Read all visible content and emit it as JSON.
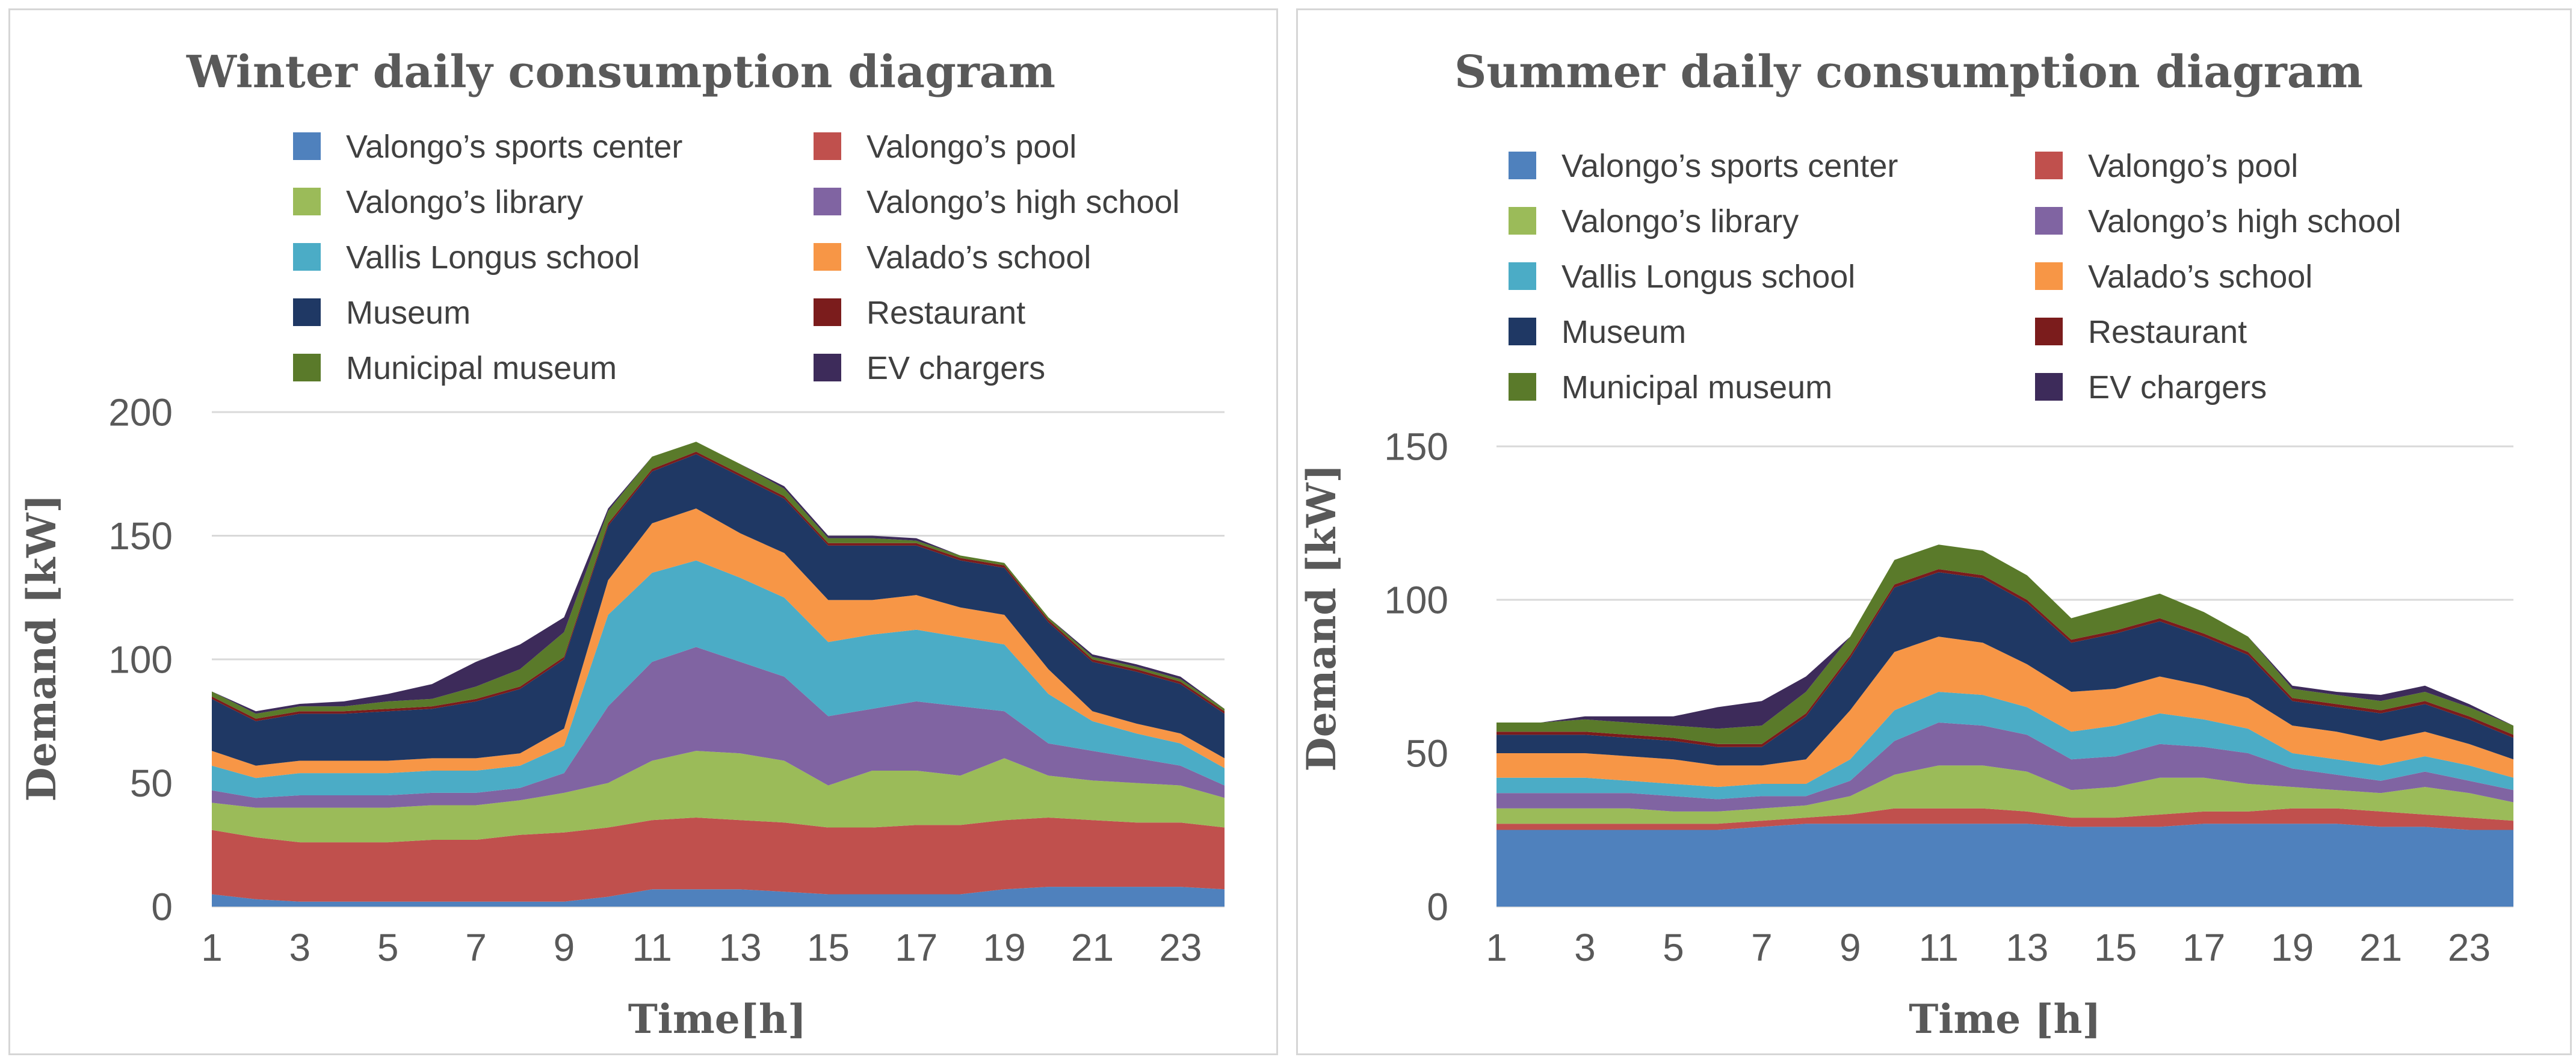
{
  "chart_data": [
    {
      "id": "winter",
      "type": "area",
      "stacked": true,
      "title": "Winter daily consumption diagram",
      "xlabel": "Time[h]",
      "ylabel": "Demand [kW]",
      "x": [
        1,
        2,
        3,
        4,
        5,
        6,
        7,
        8,
        9,
        10,
        11,
        12,
        13,
        14,
        15,
        16,
        17,
        18,
        19,
        20,
        21,
        22,
        23,
        24
      ],
      "x_ticks": [
        1,
        3,
        5,
        7,
        9,
        11,
        13,
        15,
        17,
        19,
        21,
        23
      ],
      "y_ticks": [
        0,
        50,
        100,
        150,
        200
      ],
      "ylim": [
        0,
        200
      ],
      "grid": true,
      "legend_position": "top",
      "series": [
        {
          "name": "Valongo’s sports center",
          "color": "#4f81bd",
          "values": [
            5,
            3,
            2,
            2,
            2,
            2,
            2,
            2,
            2,
            4,
            7,
            7,
            7,
            6,
            5,
            5,
            5,
            5,
            7,
            8,
            8,
            8,
            8,
            7
          ]
        },
        {
          "name": "Valongo’s pool",
          "color": "#c0504d",
          "values": [
            26,
            25,
            24,
            24,
            24,
            25,
            25,
            27,
            28,
            28,
            28,
            29,
            28,
            28,
            27,
            27,
            28,
            28,
            28,
            28,
            27,
            26,
            26,
            25
          ]
        },
        {
          "name": "Valongo’s library",
          "color": "#9bbb59",
          "values": [
            11,
            12,
            14,
            14,
            14,
            14,
            14,
            14,
            16,
            18,
            24,
            27,
            27,
            25,
            17,
            23,
            22,
            20,
            25,
            17,
            16,
            16,
            15,
            12
          ]
        },
        {
          "name": "Valongo’s high school",
          "color": "#8064a2",
          "values": [
            5,
            4,
            5,
            5,
            5,
            5,
            5,
            5,
            8,
            31,
            40,
            42,
            37,
            34,
            28,
            25,
            28,
            28,
            19,
            13,
            12,
            10,
            8,
            5
          ]
        },
        {
          "name": "Vallis Longus school",
          "color": "#4bacc6",
          "values": [
            10,
            8,
            9,
            9,
            9,
            9,
            9,
            9,
            11,
            37,
            36,
            35,
            34,
            32,
            30,
            30,
            29,
            28,
            27,
            20,
            12,
            10,
            9,
            7
          ]
        },
        {
          "name": "Valado’s school",
          "color": "#f79646",
          "values": [
            6,
            5,
            5,
            5,
            5,
            5,
            5,
            5,
            7,
            14,
            20,
            21,
            18,
            18,
            17,
            14,
            14,
            12,
            12,
            10,
            4,
            4,
            4,
            4
          ]
        },
        {
          "name": "Museum",
          "color": "#1f3864",
          "values": [
            21,
            18,
            19,
            19,
            20,
            20,
            23,
            26,
            28,
            22,
            21,
            22,
            23,
            22,
            22,
            22,
            20,
            19,
            19,
            19,
            20,
            21,
            20,
            18
          ]
        },
        {
          "name": "Restaurant",
          "color": "#7b1c1c",
          "values": [
            1,
            1,
            1,
            1,
            1,
            1,
            1,
            1,
            1,
            1,
            1,
            1,
            1,
            1,
            1,
            1,
            1,
            1,
            1,
            1,
            1,
            1,
            1,
            1
          ]
        },
        {
          "name": "Municipal museum",
          "color": "#5a7a2a",
          "values": [
            2,
            2,
            2,
            2,
            3,
            3,
            5,
            7,
            10,
            5,
            5,
            4,
            4,
            3,
            2,
            2,
            1,
            1,
            1,
            1,
            1,
            1,
            1,
            1
          ]
        },
        {
          "name": "EV chargers",
          "color": "#3d2b5a",
          "values": [
            0,
            1,
            1,
            2,
            3,
            6,
            10,
            10,
            6,
            1,
            0,
            0,
            0,
            1,
            1,
            1,
            1,
            0,
            0,
            0,
            1,
            1,
            1,
            0
          ]
        }
      ]
    },
    {
      "id": "summer",
      "type": "area",
      "stacked": true,
      "title": "Summer daily consumption diagram",
      "xlabel": "Time [h]",
      "ylabel": "Demand [kW]",
      "x": [
        1,
        2,
        3,
        4,
        5,
        6,
        7,
        8,
        9,
        10,
        11,
        12,
        13,
        14,
        15,
        16,
        17,
        18,
        19,
        20,
        21,
        22,
        23,
        24
      ],
      "x_ticks": [
        1,
        3,
        5,
        7,
        9,
        11,
        13,
        15,
        17,
        19,
        21,
        23
      ],
      "y_ticks": [
        0,
        50,
        100,
        150
      ],
      "ylim": [
        0,
        150
      ],
      "grid": true,
      "legend_position": "top",
      "series": [
        {
          "name": "Valongo’s sports center",
          "color": "#4f81bd",
          "values": [
            25,
            25,
            25,
            25,
            25,
            25,
            26,
            27,
            27,
            27,
            27,
            27,
            27,
            26,
            26,
            26,
            27,
            27,
            27,
            27,
            26,
            26,
            25,
            25
          ]
        },
        {
          "name": "Valongo’s pool",
          "color": "#c0504d",
          "values": [
            2,
            2,
            2,
            2,
            2,
            2,
            2,
            2,
            3,
            5,
            5,
            5,
            4,
            3,
            3,
            4,
            4,
            4,
            5,
            5,
            5,
            4,
            4,
            3
          ]
        },
        {
          "name": "Valongo’s library",
          "color": "#9bbb59",
          "values": [
            5,
            5,
            5,
            5,
            4,
            4,
            4,
            4,
            6,
            11,
            14,
            14,
            13,
            9,
            10,
            12,
            11,
            9,
            7,
            6,
            6,
            9,
            8,
            6
          ]
        },
        {
          "name": "Valongo’s high school",
          "color": "#8064a2",
          "values": [
            5,
            5,
            5,
            5,
            5,
            4,
            4,
            3,
            5,
            11,
            14,
            13,
            12,
            10,
            10,
            11,
            10,
            10,
            6,
            5,
            4,
            5,
            4,
            4
          ]
        },
        {
          "name": "Vallis Longus school",
          "color": "#4bacc6",
          "values": [
            5,
            5,
            5,
            4,
            4,
            4,
            4,
            4,
            7,
            10,
            10,
            10,
            9,
            9,
            10,
            10,
            9,
            8,
            5,
            5,
            5,
            5,
            5,
            4
          ]
        },
        {
          "name": "Valado’s school",
          "color": "#f79646",
          "values": [
            8,
            8,
            8,
            8,
            8,
            7,
            6,
            8,
            16,
            19,
            18,
            17,
            14,
            13,
            12,
            12,
            11,
            10,
            9,
            9,
            8,
            8,
            7,
            6
          ]
        },
        {
          "name": "Museum",
          "color": "#1f3864",
          "values": [
            6,
            6,
            6,
            6,
            6,
            6,
            6,
            14,
            17,
            21,
            21,
            21,
            20,
            16,
            18,
            18,
            16,
            14,
            8,
            8,
            9,
            9,
            8,
            7
          ]
        },
        {
          "name": "Restaurant",
          "color": "#7b1c1c",
          "values": [
            1,
            1,
            1,
            1,
            1,
            1,
            1,
            1,
            1,
            1,
            1,
            1,
            1,
            1,
            1,
            1,
            1,
            1,
            1,
            1,
            1,
            1,
            1,
            1
          ]
        },
        {
          "name": "Municipal museum",
          "color": "#5a7a2a",
          "values": [
            3,
            3,
            4,
            4,
            4,
            5,
            6,
            7,
            6,
            8,
            8,
            8,
            8,
            7,
            8,
            8,
            7,
            5,
            3,
            3,
            3,
            3,
            3,
            3
          ]
        },
        {
          "name": "EV chargers",
          "color": "#3d2b5a",
          "values": [
            0,
            0,
            1,
            2,
            3,
            7,
            8,
            5,
            0,
            0,
            0,
            0,
            0,
            0,
            0,
            0,
            0,
            0,
            1,
            1,
            2,
            2,
            1,
            0
          ]
        }
      ]
    }
  ]
}
